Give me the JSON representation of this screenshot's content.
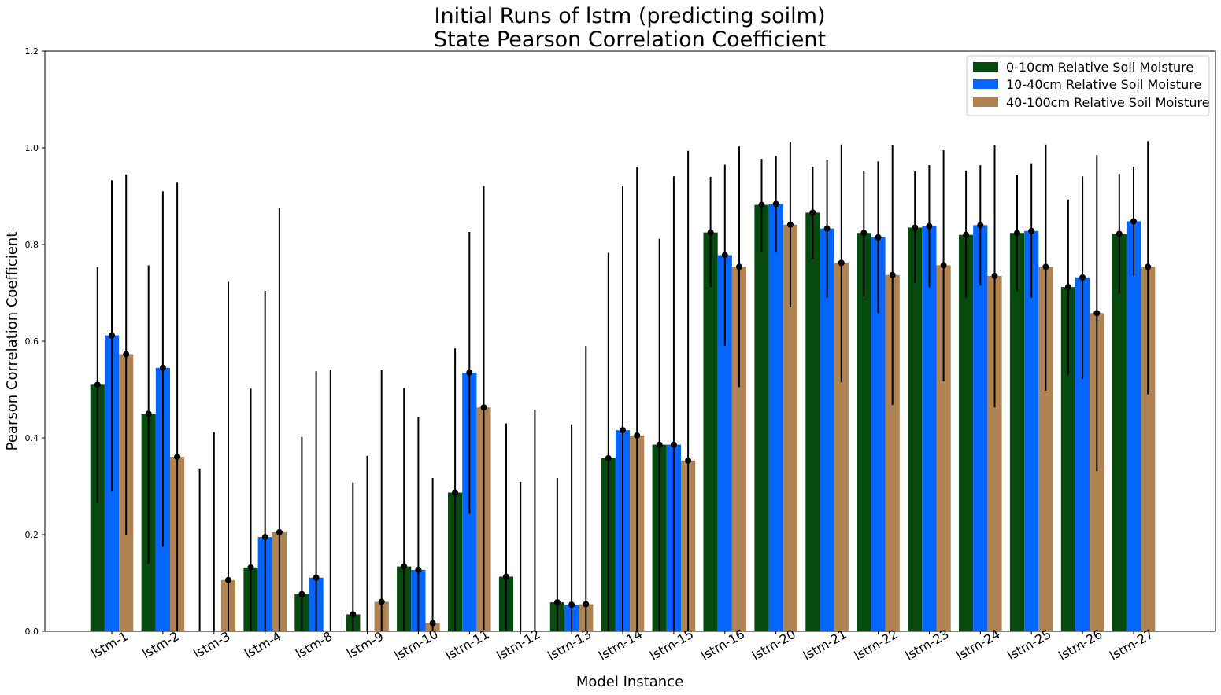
{
  "chart_data": {
    "type": "bar",
    "title": [
      "Initial Runs of lstm (predicting soilm)",
      "State Pearson Correlation Coefficient"
    ],
    "xlabel": "Model Instance",
    "ylabel": "Pearson Correlation Coefficient",
    "ylim": [
      0,
      1.2
    ],
    "yticks": [
      "0.0",
      "0.2",
      "0.4",
      "0.6",
      "0.8",
      "1.0",
      "1.2"
    ],
    "ytick_values": [
      0,
      0.2,
      0.4,
      0.6,
      0.8,
      1.0,
      1.2
    ],
    "grid": false,
    "legend_position": "top-right",
    "categories": [
      "lstm-1",
      "lstm-2",
      "lstm-3",
      "lstm-4",
      "lstm-8",
      "lstm-9",
      "lstm-10",
      "lstm-11",
      "lstm-12",
      "lstm-13",
      "lstm-14",
      "lstm-15",
      "lstm-16",
      "lstm-20",
      "lstm-21",
      "lstm-22",
      "lstm-23",
      "lstm-24",
      "lstm-25",
      "lstm-26",
      "lstm-27"
    ],
    "series": [
      {
        "name": "0-10cm Relative Soil Moisture",
        "color": "#064a10",
        "values": [
          0.51,
          0.45,
          0.0,
          0.132,
          0.077,
          0.035,
          0.134,
          0.287,
          0.113,
          0.06,
          0.358,
          0.386,
          0.825,
          0.882,
          0.866,
          0.824,
          0.835,
          0.82,
          0.824,
          0.712,
          0.822
        ],
        "err_low": [
          0.265,
          0.14,
          0.0,
          0.0,
          0.0,
          0.0,
          0.0,
          0.0,
          0.0,
          0.0,
          0.0,
          0.0,
          0.712,
          0.785,
          0.77,
          0.693,
          0.72,
          0.69,
          0.703,
          0.53,
          0.7
        ],
        "err_high": [
          0.753,
          0.757,
          0.337,
          0.502,
          0.402,
          0.308,
          0.503,
          0.585,
          0.43,
          0.317,
          0.783,
          0.812,
          0.94,
          0.977,
          0.961,
          0.953,
          0.951,
          0.953,
          0.943,
          0.893,
          0.946
        ]
      },
      {
        "name": "10-40cm Relative Soil Moisture",
        "color": "#0565ff",
        "values": [
          0.612,
          0.545,
          0.0,
          0.195,
          0.111,
          0.0,
          0.127,
          0.535,
          0.0,
          0.055,
          0.416,
          0.386,
          0.778,
          0.884,
          0.833,
          0.815,
          0.838,
          0.84,
          0.828,
          0.732,
          0.848
        ],
        "err_low": [
          0.29,
          0.175,
          0.0,
          0.0,
          0.0,
          0.0,
          0.0,
          0.243,
          0.0,
          0.0,
          0.0,
          0.0,
          0.59,
          0.785,
          0.69,
          0.658,
          0.712,
          0.715,
          0.69,
          0.522,
          0.735
        ],
        "err_high": [
          0.933,
          0.91,
          0.412,
          0.704,
          0.538,
          0.363,
          0.443,
          0.826,
          0.309,
          0.428,
          0.922,
          0.941,
          0.965,
          0.983,
          0.975,
          0.972,
          0.964,
          0.964,
          0.968,
          0.941,
          0.961
        ]
      },
      {
        "name": "40-100cm Relative Soil Moisture",
        "color": "#af8452",
        "values": [
          0.573,
          0.361,
          0.106,
          0.205,
          0.0,
          0.061,
          0.017,
          0.463,
          0.0,
          0.056,
          0.405,
          0.353,
          0.754,
          0.841,
          0.762,
          0.737,
          0.757,
          0.735,
          0.754,
          0.658,
          0.754
        ],
        "err_low": [
          0.2,
          0.0,
          0.0,
          0.0,
          0.0,
          0.0,
          0.0,
          0.003,
          0.0,
          0.0,
          0.0,
          0.0,
          0.505,
          0.67,
          0.515,
          0.468,
          0.517,
          0.463,
          0.498,
          0.331,
          0.49
        ],
        "err_high": [
          0.945,
          0.928,
          0.723,
          0.876,
          0.541,
          0.54,
          0.317,
          0.921,
          0.458,
          0.59,
          0.961,
          0.994,
          1.003,
          1.012,
          1.007,
          1.005,
          0.995,
          1.005,
          1.007,
          0.985,
          1.014
        ]
      }
    ]
  }
}
